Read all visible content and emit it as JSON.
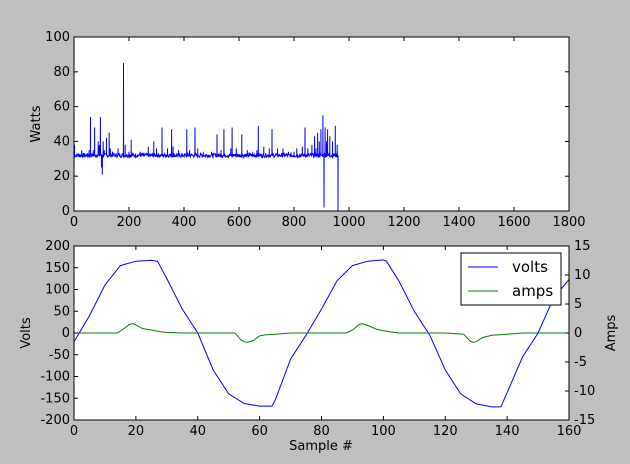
{
  "chart_data": [
    {
      "type": "line",
      "title": "",
      "xlabel": "",
      "ylabel": "Watts",
      "xlim": [
        0,
        1800
      ],
      "ylim": [
        0,
        100
      ],
      "xticks": [
        0,
        200,
        400,
        600,
        800,
        1000,
        1200,
        1400,
        1600,
        1800
      ],
      "yticks": [
        0,
        20,
        40,
        60,
        80,
        100
      ],
      "grid": false,
      "series": [
        {
          "color": "#0000ff",
          "baseline": 32,
          "x_end": 960,
          "spikes": [
            {
              "x": 2,
              "y": 38
            },
            {
              "x": 28,
              "y": 35
            },
            {
              "x": 55,
              "y": 35
            },
            {
              "x": 60,
              "y": 54
            },
            {
              "x": 70,
              "y": 35
            },
            {
              "x": 75,
              "y": 48
            },
            {
              "x": 88,
              "y": 40
            },
            {
              "x": 92,
              "y": 38
            },
            {
              "x": 96,
              "y": 54
            },
            {
              "x": 100,
              "y": 25
            },
            {
              "x": 103,
              "y": 21
            },
            {
              "x": 106,
              "y": 40
            },
            {
              "x": 110,
              "y": 35
            },
            {
              "x": 118,
              "y": 42
            },
            {
              "x": 128,
              "y": 45
            },
            {
              "x": 132,
              "y": 36
            },
            {
              "x": 140,
              "y": 34
            },
            {
              "x": 160,
              "y": 36
            },
            {
              "x": 180,
              "y": 85
            },
            {
              "x": 186,
              "y": 38
            },
            {
              "x": 200,
              "y": 34
            },
            {
              "x": 208,
              "y": 41
            },
            {
              "x": 240,
              "y": 34
            },
            {
              "x": 270,
              "y": 37
            },
            {
              "x": 290,
              "y": 40
            },
            {
              "x": 300,
              "y": 36
            },
            {
              "x": 320,
              "y": 48
            },
            {
              "x": 340,
              "y": 36
            },
            {
              "x": 355,
              "y": 47
            },
            {
              "x": 360,
              "y": 37
            },
            {
              "x": 380,
              "y": 35
            },
            {
              "x": 410,
              "y": 47
            },
            {
              "x": 420,
              "y": 35
            },
            {
              "x": 440,
              "y": 48
            },
            {
              "x": 450,
              "y": 36
            },
            {
              "x": 470,
              "y": 34
            },
            {
              "x": 500,
              "y": 34
            },
            {
              "x": 520,
              "y": 44
            },
            {
              "x": 535,
              "y": 35
            },
            {
              "x": 545,
              "y": 47
            },
            {
              "x": 570,
              "y": 36
            },
            {
              "x": 575,
              "y": 48
            },
            {
              "x": 590,
              "y": 36
            },
            {
              "x": 610,
              "y": 44
            },
            {
              "x": 630,
              "y": 35
            },
            {
              "x": 650,
              "y": 34
            },
            {
              "x": 665,
              "y": 35
            },
            {
              "x": 670,
              "y": 49
            },
            {
              "x": 690,
              "y": 37
            },
            {
              "x": 710,
              "y": 36
            },
            {
              "x": 720,
              "y": 47
            },
            {
              "x": 740,
              "y": 36
            },
            {
              "x": 760,
              "y": 36
            },
            {
              "x": 780,
              "y": 34
            },
            {
              "x": 800,
              "y": 34
            },
            {
              "x": 810,
              "y": 36
            },
            {
              "x": 830,
              "y": 37
            },
            {
              "x": 840,
              "y": 48
            },
            {
              "x": 850,
              "y": 36
            },
            {
              "x": 865,
              "y": 38
            },
            {
              "x": 875,
              "y": 43
            },
            {
              "x": 880,
              "y": 36
            },
            {
              "x": 886,
              "y": 45
            },
            {
              "x": 892,
              "y": 40
            },
            {
              "x": 898,
              "y": 47
            },
            {
              "x": 905,
              "y": 55
            },
            {
              "x": 909,
              "y": 2
            },
            {
              "x": 913,
              "y": 48
            },
            {
              "x": 918,
              "y": 40
            },
            {
              "x": 922,
              "y": 47
            },
            {
              "x": 930,
              "y": 43
            },
            {
              "x": 940,
              "y": 40
            },
            {
              "x": 950,
              "y": 49
            },
            {
              "x": 957,
              "y": 38
            },
            {
              "x": 960,
              "y": 0
            }
          ]
        }
      ]
    },
    {
      "type": "line",
      "title": "",
      "xlabel": "Sample #",
      "ylabel": "Volts",
      "y2label": "Amps",
      "xlim": [
        0,
        160
      ],
      "ylim": [
        -200,
        200
      ],
      "y2lim": [
        -15,
        15
      ],
      "xticks": [
        0,
        20,
        40,
        60,
        80,
        100,
        120,
        140,
        160
      ],
      "yticks": [
        -200,
        -150,
        -100,
        -50,
        0,
        50,
        100,
        150,
        200
      ],
      "y2ticks": [
        -15,
        -10,
        -5,
        0,
        5,
        10,
        15
      ],
      "grid": false,
      "legend": "top-right",
      "series": [
        {
          "name": "volts",
          "color": "#0000ff",
          "axis": "left",
          "x": [
            0,
            5,
            10,
            15,
            20,
            25,
            27,
            30,
            35,
            40,
            45,
            50,
            55,
            60,
            64,
            65,
            70,
            75,
            80,
            85,
            90,
            95,
            100,
            101,
            105,
            110,
            115,
            120,
            125,
            130,
            135,
            138,
            145,
            150,
            155,
            160
          ],
          "y": [
            -20,
            40,
            110,
            155,
            165,
            167,
            165,
            125,
            55,
            0,
            -85,
            -140,
            -162,
            -168,
            -168,
            -155,
            -60,
            -5,
            55,
            120,
            155,
            165,
            168,
            165,
            120,
            50,
            -5,
            -85,
            -140,
            -163,
            -170,
            -170,
            -55,
            0,
            80,
            123
          ]
        },
        {
          "name": "amps",
          "color": "#008000",
          "axis": "right",
          "x": [
            0,
            8,
            14,
            16,
            18,
            19,
            20,
            22,
            25,
            28,
            30,
            35,
            40,
            45,
            52,
            54,
            55,
            56,
            58,
            60,
            62,
            65,
            70,
            80,
            88,
            90,
            92,
            93,
            95,
            98,
            102,
            105,
            110,
            115,
            120,
            126,
            128,
            129,
            130,
            132,
            135,
            140,
            145,
            150,
            160
          ],
          "y": [
            0,
            0,
            0,
            0.7,
            1.5,
            1.6,
            1.4,
            0.8,
            0.5,
            0.2,
            0.1,
            0,
            0,
            0,
            0,
            -1.2,
            -1.5,
            -1.6,
            -1.3,
            -0.5,
            -0.3,
            -0.2,
            0,
            0,
            0,
            0.5,
            1.4,
            1.6,
            1.3,
            0.6,
            0.2,
            0,
            0,
            0,
            0,
            -0.2,
            -1.4,
            -1.6,
            -1.5,
            -0.8,
            -0.4,
            -0.2,
            0,
            0,
            0
          ]
        }
      ]
    }
  ]
}
